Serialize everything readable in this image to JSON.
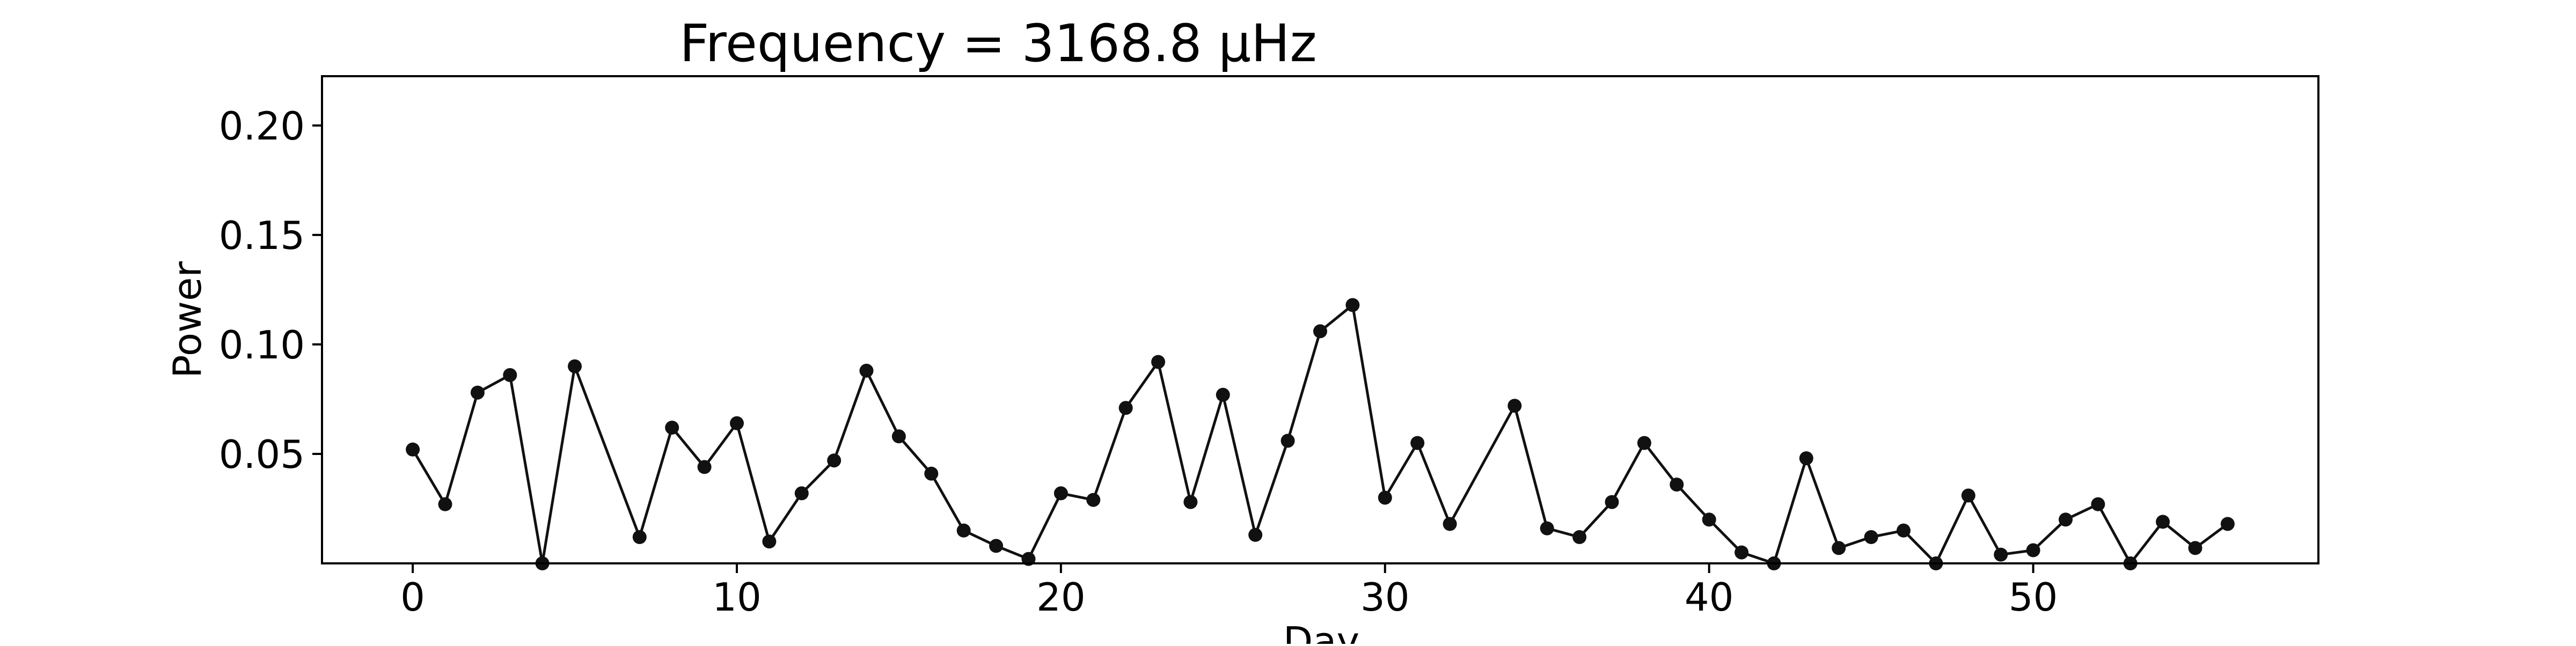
{
  "chart_data": {
    "type": "line",
    "title": "Frequency = 3168.8 μHz",
    "xlabel": "Day",
    "ylabel": "Power",
    "xlim": [
      -2.8,
      58.8
    ],
    "ylim": [
      0.0,
      0.2225
    ],
    "xticks": [
      0,
      10,
      20,
      30,
      40,
      50
    ],
    "xtick_labels": [
      "0",
      "10",
      "20",
      "30",
      "40",
      "50"
    ],
    "yticks": [
      0.05,
      0.1,
      0.15,
      0.2
    ],
    "ytick_labels": [
      "0.05",
      "0.10",
      "0.15",
      "0.20"
    ],
    "grid": false,
    "markers": true,
    "color": "#111111",
    "series": [
      {
        "x": [
          0,
          1,
          2,
          3,
          4,
          5,
          7,
          8,
          9,
          10,
          11,
          12,
          13,
          14,
          15,
          16,
          17,
          18,
          19,
          20,
          21,
          22,
          23,
          24,
          25,
          26,
          27,
          28,
          29,
          30,
          31,
          32,
          34,
          35,
          36,
          37,
          38,
          39,
          40,
          41,
          42,
          43,
          44,
          45,
          46,
          47,
          48,
          49,
          50,
          51,
          52,
          53,
          54,
          55,
          56
        ],
        "values": [
          0.052,
          0.027,
          0.078,
          0.086,
          0.0,
          0.09,
          0.012,
          0.062,
          0.044,
          0.064,
          0.01,
          0.032,
          0.047,
          0.088,
          0.058,
          0.041,
          0.015,
          0.008,
          0.002,
          0.032,
          0.029,
          0.071,
          0.092,
          0.028,
          0.077,
          0.013,
          0.056,
          0.106,
          0.118,
          0.03,
          0.055,
          0.018,
          0.072,
          0.016,
          0.012,
          0.028,
          0.055,
          0.036,
          0.02,
          0.005,
          0.0,
          0.048,
          0.007,
          0.012,
          0.015,
          0.0,
          0.031,
          0.004,
          0.006,
          0.02,
          0.027,
          0.0,
          0.019,
          0.007,
          0.018
        ]
      }
    ]
  }
}
